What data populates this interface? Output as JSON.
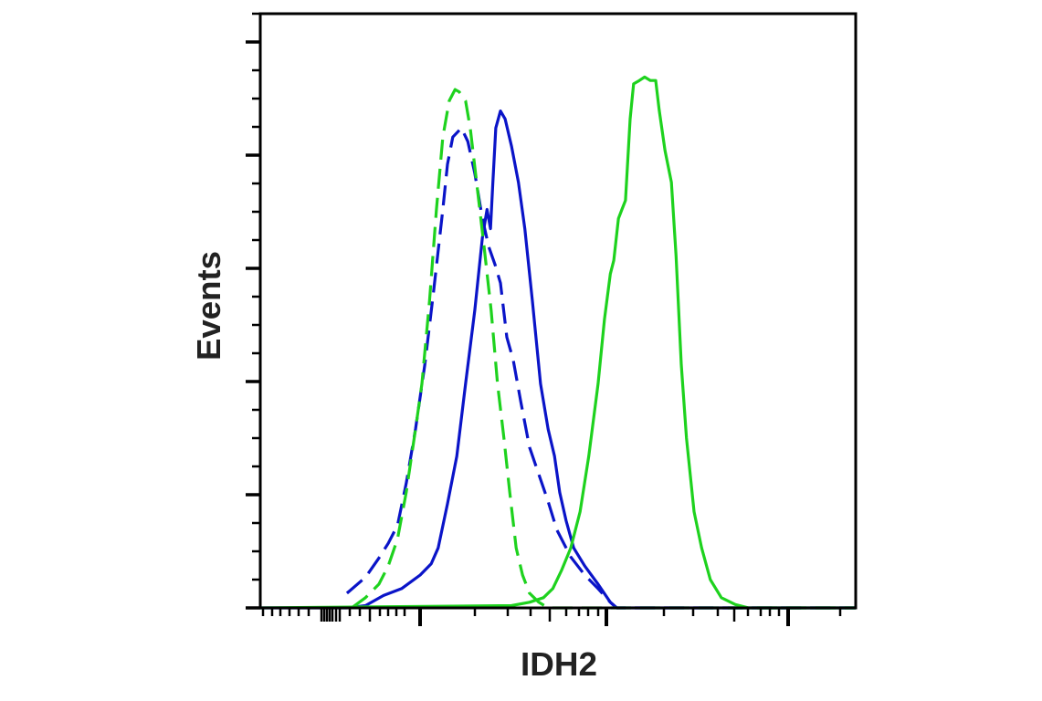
{
  "chart_data": {
    "type": "line",
    "title": "",
    "xlabel": "IDH2",
    "ylabel": "Events",
    "xlim": [
      0,
      1024
    ],
    "ylim": [
      0,
      5.25
    ],
    "grid": false,
    "legend": "none",
    "series": [
      {
        "color": "#0a14c8",
        "dash": false,
        "x": [
          0,
          149,
          181,
          212,
          243,
          275,
          294,
          306,
          322,
          338,
          353,
          369,
          382,
          390,
          396,
          400,
          405,
          413,
          421,
          432,
          444,
          455,
          468,
          482,
          495,
          506,
          515,
          526,
          539,
          558,
          581,
          602,
          613,
          1024
        ],
        "y": [
          0,
          0,
          0.02,
          0.11,
          0.17,
          0.29,
          0.39,
          0.53,
          0.92,
          1.34,
          1.98,
          2.63,
          3.27,
          3.52,
          3.35,
          3.76,
          4.24,
          4.39,
          4.32,
          4.08,
          3.76,
          3.35,
          2.71,
          1.98,
          1.58,
          1.34,
          1.02,
          0.77,
          0.53,
          0.37,
          0.21,
          0.05,
          0,
          0
        ]
      },
      {
        "color": "#0a14c8",
        "dash": true,
        "x": [
          149,
          181,
          204,
          220,
          236,
          251,
          267,
          283,
          298,
          314,
          322,
          331,
          346,
          357,
          369,
          382,
          393,
          404,
          413,
          424,
          435,
          448,
          463,
          479,
          495,
          510,
          534,
          558,
          581,
          602,
          613,
          1024
        ],
        "y": [
          0.13,
          0.27,
          0.44,
          0.57,
          0.73,
          1.1,
          1.58,
          2.15,
          2.79,
          3.52,
          3.92,
          4.16,
          4.24,
          4.12,
          3.84,
          3.44,
          3.19,
          3.03,
          2.87,
          2.39,
          2.19,
          1.82,
          1.42,
          1.18,
          0.94,
          0.69,
          0.45,
          0.29,
          0.17,
          0.05,
          0,
          0
        ]
      },
      {
        "color": "#1ed21e",
        "dash": true,
        "x": [
          157,
          181,
          204,
          220,
          236,
          251,
          267,
          278,
          291,
          303,
          314,
          325,
          335,
          342,
          353,
          361,
          372,
          385,
          397,
          408,
          419,
          429,
          440,
          451,
          463,
          479,
          495,
          1024
        ],
        "y": [
          0,
          0.09,
          0.21,
          0.37,
          0.61,
          1.02,
          1.58,
          1.98,
          2.71,
          3.52,
          4.16,
          4.48,
          4.58,
          4.56,
          4.48,
          4.24,
          3.76,
          3.19,
          2.63,
          1.98,
          1.5,
          1.02,
          0.53,
          0.29,
          0.13,
          0.05,
          0,
          0
        ]
      },
      {
        "color": "#1ed21e",
        "dash": false,
        "x": [
          0,
          432,
          463,
          487,
          503,
          518,
          534,
          550,
          565,
          581,
          592,
          602,
          608,
          616,
          622,
          628,
          636,
          642,
          652,
          661,
          671,
          680,
          686,
          696,
          707,
          715,
          724,
          733,
          746,
          759,
          774,
          793,
          817,
          840,
          1024
        ],
        "y": [
          0,
          0.02,
          0.05,
          0.09,
          0.17,
          0.33,
          0.53,
          0.85,
          1.34,
          1.98,
          2.55,
          2.95,
          3.07,
          3.44,
          3.52,
          3.6,
          4.32,
          4.63,
          4.66,
          4.69,
          4.66,
          4.66,
          4.4,
          4.04,
          3.76,
          3.11,
          2.15,
          1.5,
          0.85,
          0.53,
          0.25,
          0.09,
          0.03,
          0,
          0
        ]
      }
    ]
  }
}
